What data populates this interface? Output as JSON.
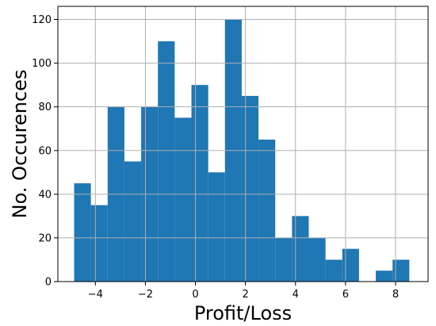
{
  "chart_data": {
    "type": "bar",
    "xlabel": "Profit/Loss",
    "ylabel": "No. Occurences",
    "xlim": [
      -5.5,
      9.3
    ],
    "ylim": [
      0,
      126
    ],
    "grid": true,
    "bar_color": "#1f77b4",
    "grid_color": "#b0b0b0",
    "xticks": [
      -4,
      -2,
      0,
      2,
      4,
      6,
      8
    ],
    "xtick_labels": [
      "−4",
      "−2",
      "0",
      "2",
      "4",
      "6",
      "8"
    ],
    "yticks": [
      0,
      20,
      40,
      60,
      80,
      100,
      120
    ],
    "ytick_labels": [
      "0",
      "20",
      "40",
      "60",
      "80",
      "100",
      "120"
    ],
    "bins": [
      {
        "x0": -4.85,
        "x1": -4.18,
        "count": 45
      },
      {
        "x0": -4.18,
        "x1": -3.51,
        "count": 35
      },
      {
        "x0": -3.51,
        "x1": -2.84,
        "count": 80
      },
      {
        "x0": -2.84,
        "x1": -2.17,
        "count": 55
      },
      {
        "x0": -2.17,
        "x1": -1.5,
        "count": 80
      },
      {
        "x0": -1.5,
        "x1": -0.83,
        "count": 110
      },
      {
        "x0": -0.83,
        "x1": -0.16,
        "count": 75
      },
      {
        "x0": -0.16,
        "x1": 0.51,
        "count": 90
      },
      {
        "x0": 0.51,
        "x1": 1.18,
        "count": 50
      },
      {
        "x0": 1.18,
        "x1": 1.85,
        "count": 120
      },
      {
        "x0": 1.85,
        "x1": 2.52,
        "count": 85
      },
      {
        "x0": 2.52,
        "x1": 3.19,
        "count": 65
      },
      {
        "x0": 3.19,
        "x1": 3.86,
        "count": 20
      },
      {
        "x0": 3.86,
        "x1": 4.53,
        "count": 30
      },
      {
        "x0": 4.53,
        "x1": 5.2,
        "count": 20
      },
      {
        "x0": 5.2,
        "x1": 5.87,
        "count": 10
      },
      {
        "x0": 5.87,
        "x1": 6.54,
        "count": 15
      },
      {
        "x0": 6.54,
        "x1": 7.21,
        "count": 0
      },
      {
        "x0": 7.21,
        "x1": 7.88,
        "count": 5
      },
      {
        "x0": 7.88,
        "x1": 8.55,
        "count": 10
      }
    ]
  }
}
